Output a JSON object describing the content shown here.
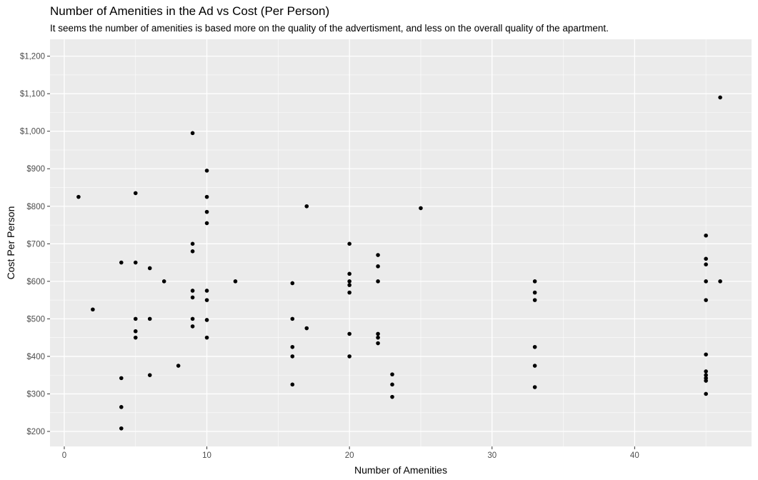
{
  "chart_data": {
    "type": "scatter",
    "title": "Number of Amenities in the Ad vs Cost (Per Person)",
    "subtitle": "It seems the number of amenities is based more on the quality of the advertisment, and less on the overall quality of the apartment.",
    "xlabel": "Number of Amenities",
    "ylabel": "Cost Per Person",
    "xlim": [
      -1,
      48.2
    ],
    "ylim": [
      160,
      1245
    ],
    "x_ticks": [
      0,
      10,
      20,
      30,
      40
    ],
    "x_tick_labels": [
      "0",
      "10",
      "20",
      "30",
      "40"
    ],
    "y_ticks": [
      200,
      300,
      400,
      500,
      600,
      700,
      800,
      900,
      1000,
      1100,
      1200
    ],
    "y_tick_labels": [
      "$200",
      "$300",
      "$400",
      "$500",
      "$600",
      "$700",
      "$800",
      "$900",
      "$1,000",
      "$1,100",
      "$1,200"
    ],
    "grid": true,
    "colors": {
      "panel": "#ebebeb",
      "grid": "#ffffff",
      "point": "#000000"
    },
    "points": [
      {
        "x": 1,
        "y": 825
      },
      {
        "x": 2,
        "y": 525
      },
      {
        "x": 4,
        "y": 650
      },
      {
        "x": 4,
        "y": 342
      },
      {
        "x": 4,
        "y": 265
      },
      {
        "x": 4,
        "y": 208
      },
      {
        "x": 5,
        "y": 835
      },
      {
        "x": 5,
        "y": 650
      },
      {
        "x": 5,
        "y": 500
      },
      {
        "x": 5,
        "y": 467
      },
      {
        "x": 5,
        "y": 450
      },
      {
        "x": 6,
        "y": 635
      },
      {
        "x": 6,
        "y": 500
      },
      {
        "x": 6,
        "y": 350
      },
      {
        "x": 7,
        "y": 600
      },
      {
        "x": 8,
        "y": 375
      },
      {
        "x": 9,
        "y": 995
      },
      {
        "x": 9,
        "y": 700
      },
      {
        "x": 9,
        "y": 680
      },
      {
        "x": 9,
        "y": 575
      },
      {
        "x": 9,
        "y": 557
      },
      {
        "x": 9,
        "y": 500
      },
      {
        "x": 9,
        "y": 480
      },
      {
        "x": 10,
        "y": 895
      },
      {
        "x": 10,
        "y": 825
      },
      {
        "x": 10,
        "y": 785
      },
      {
        "x": 10,
        "y": 755
      },
      {
        "x": 10,
        "y": 575
      },
      {
        "x": 10,
        "y": 550
      },
      {
        "x": 10,
        "y": 497
      },
      {
        "x": 10,
        "y": 450
      },
      {
        "x": 12,
        "y": 600
      },
      {
        "x": 16,
        "y": 595
      },
      {
        "x": 16,
        "y": 500
      },
      {
        "x": 16,
        "y": 425
      },
      {
        "x": 16,
        "y": 400
      },
      {
        "x": 16,
        "y": 325
      },
      {
        "x": 17,
        "y": 800
      },
      {
        "x": 17,
        "y": 475
      },
      {
        "x": 20,
        "y": 700
      },
      {
        "x": 20,
        "y": 620
      },
      {
        "x": 20,
        "y": 600
      },
      {
        "x": 20,
        "y": 590
      },
      {
        "x": 20,
        "y": 570
      },
      {
        "x": 20,
        "y": 460
      },
      {
        "x": 20,
        "y": 400
      },
      {
        "x": 22,
        "y": 670
      },
      {
        "x": 22,
        "y": 640
      },
      {
        "x": 22,
        "y": 600
      },
      {
        "x": 22,
        "y": 460
      },
      {
        "x": 22,
        "y": 450
      },
      {
        "x": 22,
        "y": 435
      },
      {
        "x": 23,
        "y": 352
      },
      {
        "x": 23,
        "y": 325
      },
      {
        "x": 23,
        "y": 292
      },
      {
        "x": 25,
        "y": 795
      },
      {
        "x": 33,
        "y": 600
      },
      {
        "x": 33,
        "y": 570
      },
      {
        "x": 33,
        "y": 550
      },
      {
        "x": 33,
        "y": 425
      },
      {
        "x": 33,
        "y": 375
      },
      {
        "x": 33,
        "y": 318
      },
      {
        "x": 45,
        "y": 722
      },
      {
        "x": 45,
        "y": 660
      },
      {
        "x": 45,
        "y": 645
      },
      {
        "x": 45,
        "y": 600
      },
      {
        "x": 45,
        "y": 550
      },
      {
        "x": 45,
        "y": 405
      },
      {
        "x": 45,
        "y": 360
      },
      {
        "x": 45,
        "y": 350
      },
      {
        "x": 45,
        "y": 342
      },
      {
        "x": 45,
        "y": 335
      },
      {
        "x": 45,
        "y": 300
      },
      {
        "x": 46,
        "y": 1090
      },
      {
        "x": 46,
        "y": 600
      }
    ]
  }
}
